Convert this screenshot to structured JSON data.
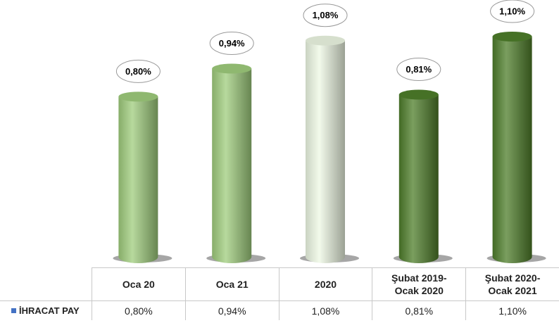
{
  "chart_data": {
    "type": "bar",
    "categories": [
      "Oca 20",
      "Oca 21",
      "2020",
      "Şubat 2019-\nOcak 2020",
      "Şubat 2020-\nOcak 2021"
    ],
    "series": [
      {
        "name": "İHRACAT PAY",
        "color": "#4472c4",
        "values": [
          0.8,
          0.94,
          1.08,
          0.81,
          1.1
        ],
        "value_labels": [
          "0,80%",
          "0,94%",
          "1,08%",
          "0,81%",
          "1,10%"
        ]
      }
    ],
    "colors": [
      "#9fcc7c",
      "#9fcc7c",
      "#eef8e4",
      "#4e7d2a",
      "#4e7d2a"
    ]
  }
}
